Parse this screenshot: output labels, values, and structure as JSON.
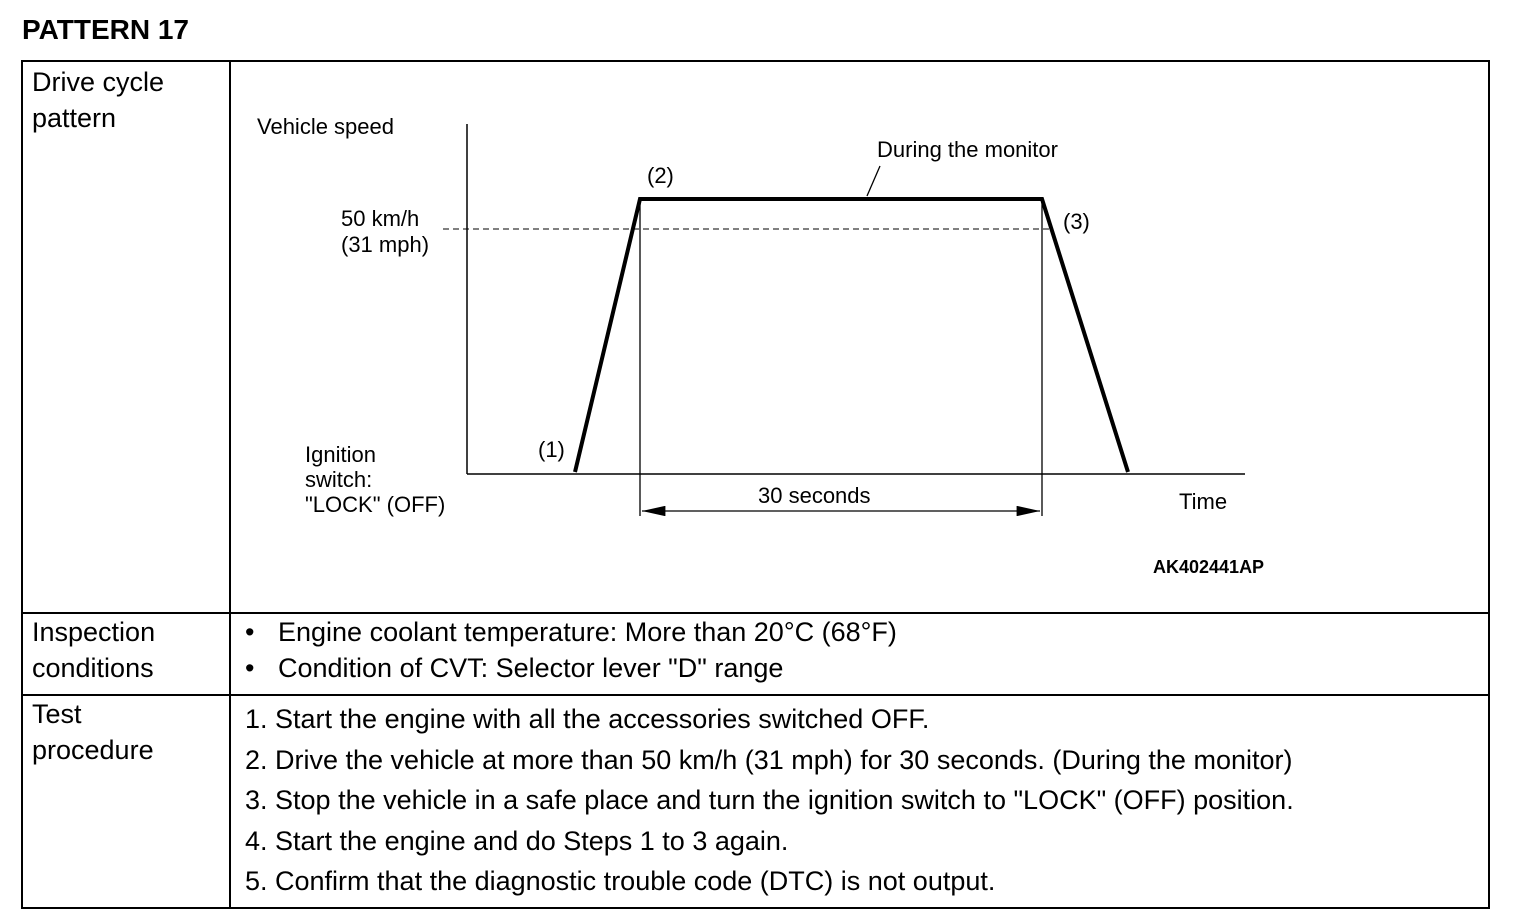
{
  "page_title": "PATTERN 17",
  "rows": {
    "drive_cycle_label": "Drive cycle\npattern",
    "inspection_label": "Inspection\nconditions",
    "test_label": "Test\nprocedure"
  },
  "diagram": {
    "y_axis_label": "Vehicle speed",
    "x_axis_label": "Time",
    "speed_label_1": "50 km/h",
    "speed_label_2": "(31 mph)",
    "ignition_line_1": "Ignition",
    "ignition_line_2": "switch:",
    "ignition_line_3": "\"LOCK\" (OFF)",
    "point_1": "(1)",
    "point_2": "(2)",
    "point_3": "(3)",
    "monitor_label": "During the monitor",
    "duration_label": "30 seconds",
    "figure_code": "AK402441AP"
  },
  "inspection_conditions": [
    "Engine coolant temperature: More than 20°C (68°F)",
    "Condition of CVT: Selector lever \"D\" range"
  ],
  "bullet_symbol": "•",
  "test_procedure": [
    "1. Start the engine with all the accessories switched OFF.",
    "2. Drive the vehicle at more than 50 km/h (31 mph) for 30 seconds. (During the monitor)",
    "3. Stop the vehicle in a safe place and turn the ignition switch to \"LOCK\" (OFF) position.",
    "4. Start the engine and do Steps 1 to 3 again.",
    "5. Confirm that the diagnostic trouble code (DTC) is not output."
  ]
}
